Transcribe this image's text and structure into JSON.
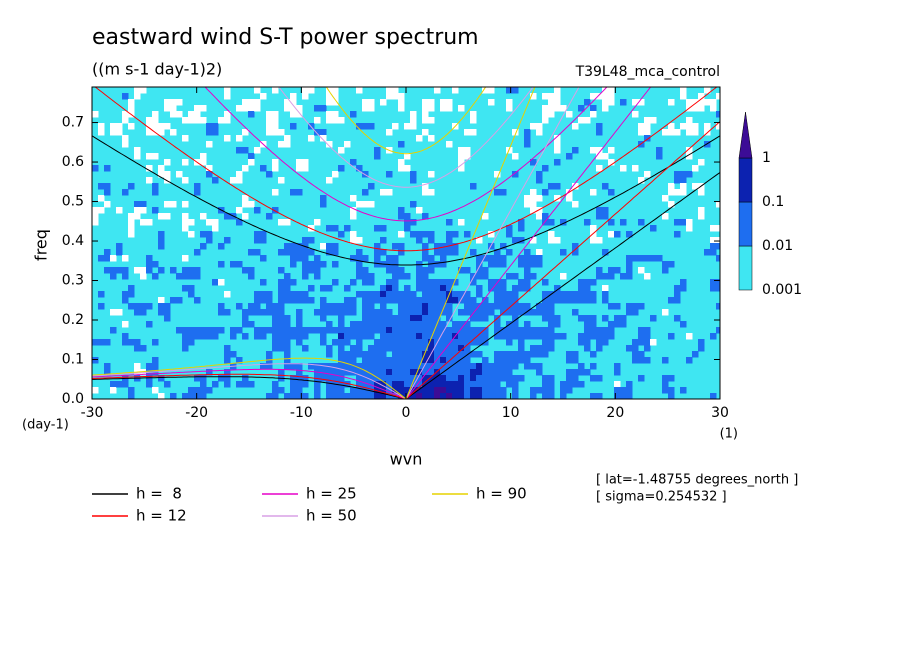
{
  "chart_data": {
    "type": "spectrum",
    "title": "eastward wind S-T power spectrum",
    "subtitle": "((m s-1 day-1)2)",
    "run_label": "T39L48_mca_control",
    "x_label": "wvn",
    "y_label": "freq",
    "y_unit": "(day-1)",
    "x_unit": "(1)",
    "xlim": [
      -30,
      30
    ],
    "ylim": [
      0,
      0.79
    ],
    "xticks": [
      -30,
      -20,
      -10,
      0,
      10,
      20,
      30
    ],
    "yticks": [
      {
        "value": 0,
        "label": "0.0"
      },
      0.1,
      0.2,
      0.3,
      0.4,
      0.5,
      0.6,
      0.7
    ],
    "levels": [
      0.001,
      0.01,
      0.1,
      1
    ],
    "level_colors": [
      "#3fe6f2",
      "#1e6ef0",
      "#0c22b0",
      "#3c0c96"
    ],
    "series": [
      {
        "name": "h =  8",
        "h": 8,
        "color": "#000000"
      },
      {
        "name": "h = 12",
        "h": 12,
        "color": "#ff0000"
      },
      {
        "name": "h = 25",
        "h": 25,
        "color": "#e600c8"
      },
      {
        "name": "h = 50",
        "h": 50,
        "color": "#d8a0e6"
      },
      {
        "name": "h = 90",
        "h": 90,
        "color": "#e6d200"
      }
    ],
    "annotations": [
      "[ lat=-1.48755 degrees_north ]",
      "[ sigma=0.254532 ]"
    ]
  }
}
